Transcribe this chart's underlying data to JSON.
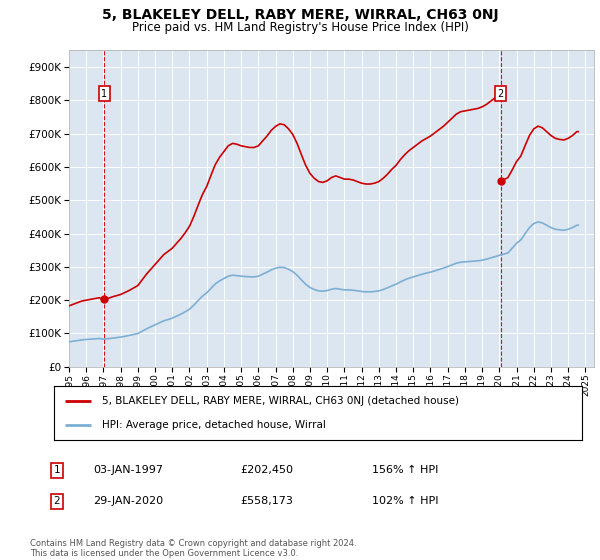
{
  "title": "5, BLAKELEY DELL, RABY MERE, WIRRAL, CH63 0NJ",
  "subtitle": "Price paid vs. HM Land Registry's House Price Index (HPI)",
  "legend_line1": "5, BLAKELEY DELL, RABY MERE, WIRRAL, CH63 0NJ (detached house)",
  "legend_line2": "HPI: Average price, detached house, Wirral",
  "annotation1_label": "1",
  "annotation1_date": "03-JAN-1997",
  "annotation1_price": "£202,450",
  "annotation1_hpi": "156% ↑ HPI",
  "annotation2_label": "2",
  "annotation2_date": "29-JAN-2020",
  "annotation2_price": "£558,173",
  "annotation2_hpi": "102% ↑ HPI",
  "footer": "Contains HM Land Registry data © Crown copyright and database right 2024.\nThis data is licensed under the Open Government Licence v3.0.",
  "property_color": "#cc0000",
  "hpi_color": "#7bafd4",
  "plot_bg": "#dce6f1",
  "ylim": [
    0,
    950000
  ],
  "yticks": [
    0,
    100000,
    200000,
    300000,
    400000,
    500000,
    600000,
    700000,
    800000,
    900000
  ],
  "sale1_x": 1997.04,
  "sale1_y": 202450,
  "sale2_x": 2020.08,
  "sale2_y": 558173,
  "hpi_at_sale1": 83000,
  "hpi_at_sale2": 335000,
  "xlim_start": 1995.0,
  "xlim_end": 2025.5
}
